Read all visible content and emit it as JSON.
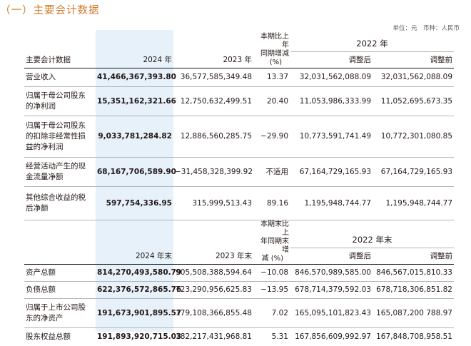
{
  "section_title": "（一）主要会计数据",
  "unit_note": "单位：元　币种：人民币",
  "table1": {
    "label_header": "主要会计数据",
    "col_current": "2024 年",
    "col_prior": "2023 年",
    "col_change": [
      "本期比上年",
      "同期增减",
      "(%)"
    ],
    "group_2022": "2022 年",
    "col_adjusted": "调整后",
    "col_before": "调整前",
    "rows": [
      {
        "label": [
          "营业收入"
        ],
        "v2024": "41,466,367,393.80",
        "v2023": "36,577,585,349.48",
        "change": "13.37",
        "adj": "32,031,562,088.09",
        "before": "32,031,562,088.09"
      },
      {
        "label": [
          "归属于母公司股东",
          "的净利润"
        ],
        "v2024": "15,351,162,321.66",
        "v2023": "12,750,632,499.51",
        "change": "20.40",
        "adj": "11,053,986,333.99",
        "before": "11,052,695,673.35"
      },
      {
        "label": [
          "归属于母公司股东",
          "的扣除非经常性损",
          "益的净利润"
        ],
        "v2024": "9,033,781,284.82",
        "v2023": "12,886,560,285.75",
        "change": "−29.90",
        "adj": "10,773,591,741.49",
        "before": "10,772,301,080.85"
      },
      {
        "label": [
          "经营活动产生的现",
          "金流量净额"
        ],
        "v2024": "68,167,706,589.90",
        "v2023": "−31,458,328,399.92",
        "change": "不适用",
        "adj": "67,164,729,165.93",
        "before": "67,164,729,165.93"
      },
      {
        "label": [
          "其他综合收益的税",
          "后净额"
        ],
        "v2024": "597,754,336.95",
        "v2023": "315,999,513.43",
        "change": "89.16",
        "adj": "1,195,948,744.77",
        "before": "1,195,948,744.77"
      }
    ]
  },
  "table2": {
    "col_current": "2024 年末",
    "col_prior": "2023 年末",
    "col_change": [
      "本期末比上",
      "年同期末增",
      "减 (%)"
    ],
    "group_2022": "2022 年末",
    "col_adjusted": "调整后",
    "col_before": "调整前",
    "rows": [
      {
        "label": [
          "资产总额"
        ],
        "v2024": "814,270,493,580.79",
        "v2023": "905,508,388,594.64",
        "change": "−10.08",
        "adj": "846,570,989,585.00",
        "before": "846,567,015,810.33"
      },
      {
        "label": [
          "负债总额"
        ],
        "v2024": "622,376,572,865.76",
        "v2023": "723,290,956,625.83",
        "change": "−13.95",
        "adj": "678,714,379,592.03",
        "before": "678,718,306,851.82"
      },
      {
        "label": [
          "归属于上市公司股",
          "东的净资产"
        ],
        "v2024": "191,673,901,895.57",
        "v2023": "179,108,366,855.48",
        "change": "7.02",
        "adj": "165,095,101,823.43",
        "before": "165,087,200 788.97"
      },
      {
        "label": [
          "股东权益总额"
        ],
        "v2024": "191,893,920,715.03",
        "v2023": "182,217,431,968.81",
        "change": "5.31",
        "adj": "167,856,609,992.97",
        "before": "167,848,708,958.51"
      }
    ]
  }
}
